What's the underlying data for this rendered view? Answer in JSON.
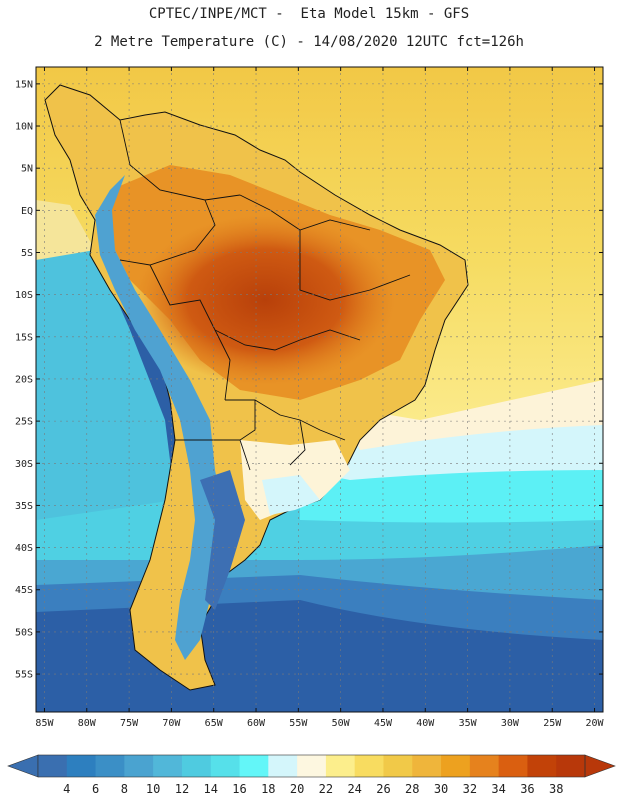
{
  "header": {
    "line1": "CPTEC/INPE/MCT -  Eta Model 15km - GFS",
    "line2": "2 Metre Temperature (C) - 14/08/2020 12UTC fct=126h"
  },
  "map": {
    "lon_range": [
      -86,
      -19
    ],
    "lat_range": [
      -59.5,
      17
    ],
    "lat_ticks": [
      {
        "value": 15,
        "label": "15N"
      },
      {
        "value": 10,
        "label": "10N"
      },
      {
        "value": 5,
        "label": "5N"
      },
      {
        "value": 0,
        "label": "EQ"
      },
      {
        "value": -5,
        "label": "5S"
      },
      {
        "value": -10,
        "label": "10S"
      },
      {
        "value": -15,
        "label": "15S"
      },
      {
        "value": -20,
        "label": "20S"
      },
      {
        "value": -25,
        "label": "25S"
      },
      {
        "value": -30,
        "label": "30S"
      },
      {
        "value": -35,
        "label": "35S"
      },
      {
        "value": -40,
        "label": "40S"
      },
      {
        "value": -45,
        "label": "45S"
      },
      {
        "value": -50,
        "label": "50S"
      },
      {
        "value": -55,
        "label": "55S"
      }
    ],
    "lon_ticks": [
      {
        "value": -85,
        "label": "85W"
      },
      {
        "value": -80,
        "label": "80W"
      },
      {
        "value": -75,
        "label": "75W"
      },
      {
        "value": -70,
        "label": "70W"
      },
      {
        "value": -65,
        "label": "65W"
      },
      {
        "value": -60,
        "label": "60W"
      },
      {
        "value": -55,
        "label": "55W"
      },
      {
        "value": -50,
        "label": "50W"
      },
      {
        "value": -45,
        "label": "45W"
      },
      {
        "value": -40,
        "label": "40W"
      },
      {
        "value": -35,
        "label": "35W"
      },
      {
        "value": -30,
        "label": "30W"
      },
      {
        "value": -25,
        "label": "25W"
      },
      {
        "value": -20,
        "label": "20W"
      }
    ]
  },
  "colorbar": {
    "labels": [
      "4",
      "6",
      "8",
      "10",
      "12",
      "14",
      "16",
      "18",
      "20",
      "22",
      "24",
      "26",
      "28",
      "30",
      "32",
      "34",
      "36",
      "38"
    ],
    "colors": [
      "#3a6fb0",
      "#2d7fbf",
      "#3b8fc6",
      "#4aa3d0",
      "#51b7d9",
      "#4fcbe0",
      "#56e0ea",
      "#63f6f8",
      "#d4f6fb",
      "#fdf7e0",
      "#fcee8c",
      "#f8dc60",
      "#f1c948",
      "#efb53b",
      "#eda11f",
      "#e6821d",
      "#da5f10",
      "#c24208",
      "#b8380a"
    ],
    "low_arrow_color": "#3a6fb0",
    "high_arrow_color": "#b8380a"
  }
}
